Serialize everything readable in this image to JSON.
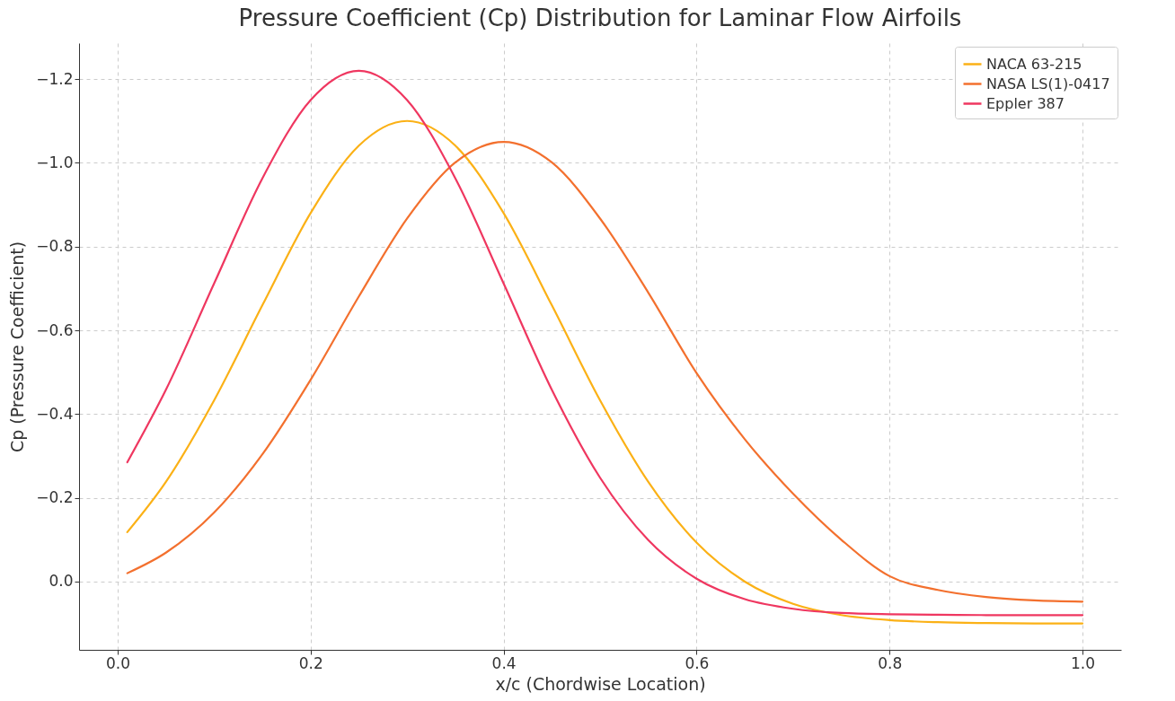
{
  "chart_data": {
    "type": "line",
    "title": "Pressure Coefficient (Cp) Distribution for Laminar Flow Airfoils",
    "xlabel": "x/c (Chordwise Location)",
    "ylabel": "Cp (Pressure Coefficient)",
    "x": [
      0.01,
      0.05,
      0.1,
      0.15,
      0.2,
      0.25,
      0.3,
      0.35,
      0.4,
      0.45,
      0.5,
      0.55,
      0.6,
      0.65,
      0.7,
      0.75,
      0.8,
      0.85,
      0.9,
      0.95,
      1.0
    ],
    "series": [
      {
        "name": "NACA 63-215",
        "color": "#fbb116",
        "values": [
          -0.118,
          -0.238,
          -0.433,
          -0.66,
          -0.88,
          -1.041,
          -1.1,
          -1.041,
          -0.88,
          -0.66,
          -0.433,
          -0.238,
          -0.093,
          0.0,
          0.053,
          0.08,
          0.092,
          0.097,
          0.099,
          0.1,
          0.1
        ]
      },
      {
        "name": "NASA LS(1)-0417",
        "color": "#f3702e",
        "values": [
          -0.02,
          -0.069,
          -0.165,
          -0.304,
          -0.482,
          -0.681,
          -0.867,
          -1.001,
          -1.05,
          -1.001,
          -0.867,
          -0.69,
          -0.498,
          -0.34,
          -0.21,
          -0.1,
          -0.013,
          0.02,
          0.037,
          0.045,
          0.048
        ]
      },
      {
        "name": "Eppler 387",
        "color": "#ef3760",
        "values": [
          -0.285,
          -0.458,
          -0.712,
          -0.963,
          -1.15,
          -1.22,
          -1.15,
          -0.963,
          -0.712,
          -0.458,
          -0.248,
          -0.099,
          -0.007,
          0.042,
          0.065,
          0.075,
          0.078,
          0.079,
          0.08,
          0.08,
          0.08
        ]
      }
    ],
    "xlim": [
      -0.04,
      1.04
    ],
    "xticks": [
      {
        "value": 0,
        "label": "0.0"
      },
      {
        "value": 0.2,
        "label": "0.2"
      },
      {
        "value": 0.4,
        "label": "0.4"
      },
      {
        "value": 0.6,
        "label": "0.6"
      },
      {
        "value": 0.8,
        "label": "0.8"
      },
      {
        "value": 1,
        "label": "1.0"
      }
    ],
    "ylim": [
      0.163,
      -1.286
    ],
    "yticks": [
      {
        "value": 0,
        "label": "0.0"
      },
      {
        "value": -0.2,
        "label": "−0.2"
      },
      {
        "value": -0.4,
        "label": "−0.4"
      },
      {
        "value": -0.6,
        "label": "−0.6"
      },
      {
        "value": -0.8,
        "label": "−0.8"
      },
      {
        "value": -1.0,
        "label": "−1.0"
      },
      {
        "value": -1.2,
        "label": "−1.2"
      }
    ],
    "grid": true,
    "legend": "top right",
    "line_style": "solid",
    "marker": "none"
  }
}
